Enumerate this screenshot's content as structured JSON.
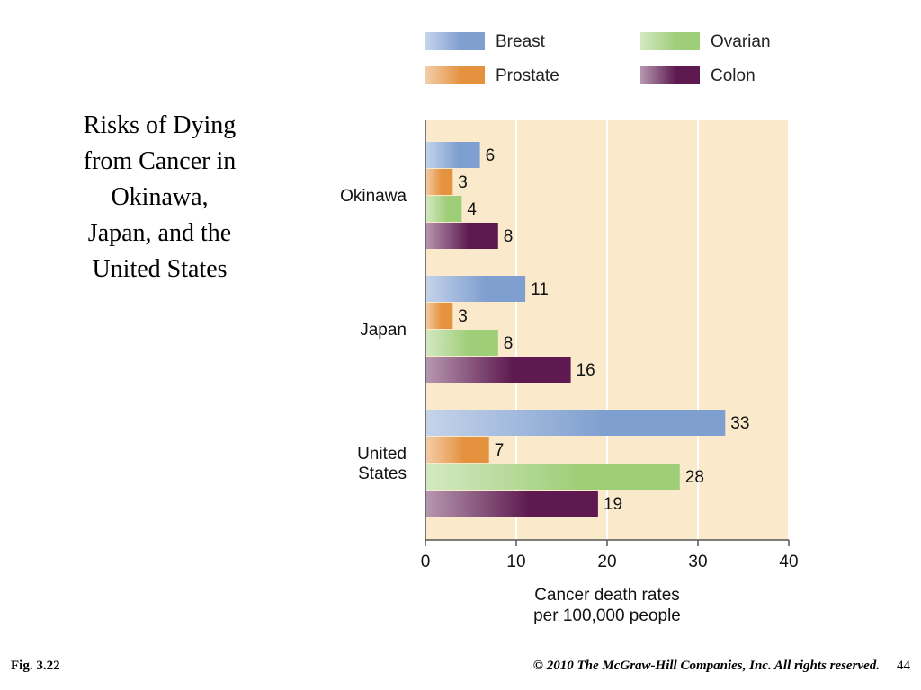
{
  "slide": {
    "title_lines": [
      "Risks of Dying",
      "from Cancer in",
      "Okinawa,",
      "Japan, and the",
      "United States"
    ],
    "figure_label": "Fig. 3.22",
    "copyright": "© 2010 The McGraw-Hill Companies, Inc. All rights reserved.",
    "page_number": "44"
  },
  "chart_data": {
    "type": "bar",
    "orientation": "horizontal",
    "categories": [
      "Okinawa",
      "Japan",
      "United States"
    ],
    "category_label_lines": [
      [
        "Okinawa"
      ],
      [
        "Japan"
      ],
      [
        "United",
        "States"
      ]
    ],
    "series": [
      {
        "name": "Breast",
        "values": [
          6,
          11,
          33
        ],
        "color": "#7f9fd0"
      },
      {
        "name": "Prostate",
        "values": [
          3,
          3,
          7
        ],
        "color": "#e5923f"
      },
      {
        "name": "Ovarian",
        "values": [
          4,
          8,
          28
        ],
        "color": "#9fce79"
      },
      {
        "name": "Colon",
        "values": [
          8,
          16,
          19
        ],
        "color": "#5e1a50"
      }
    ],
    "xlim": [
      0,
      40
    ],
    "xticks": [
      0,
      10,
      20,
      30,
      40
    ],
    "xlabel_lines": [
      "Cancer death rates",
      "per 100,000 people"
    ],
    "grid": true,
    "legend_position": "top",
    "plot_background": "#faeacb"
  }
}
